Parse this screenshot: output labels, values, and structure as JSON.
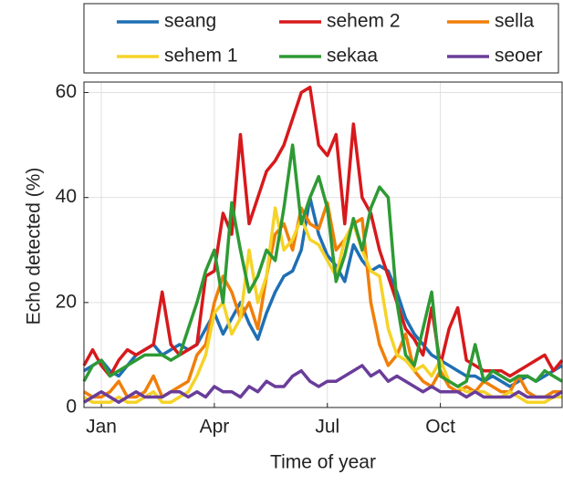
{
  "chart_data": {
    "type": "line",
    "xlabel": "Time of year",
    "ylabel": "Echo detected (%)",
    "categories": [
      null,
      null,
      "Jan",
      null,
      null,
      null,
      null,
      null,
      null,
      null,
      null,
      null,
      null,
      null,
      null,
      "Apr",
      null,
      null,
      null,
      null,
      null,
      null,
      null,
      null,
      null,
      null,
      null,
      null,
      "Jul",
      null,
      null,
      null,
      null,
      null,
      null,
      null,
      null,
      null,
      null,
      null,
      null,
      "Oct",
      null,
      null,
      null,
      null,
      null,
      null,
      null,
      null,
      null,
      null,
      null,
      null,
      null,
      null
    ],
    "series": [
      {
        "name": "seang",
        "color": "#1f6fb4",
        "values": [
          7,
          8,
          9,
          7,
          6,
          8,
          10,
          11,
          12,
          10,
          11,
          12,
          11,
          12,
          15,
          18,
          14,
          17,
          20,
          16,
          13,
          18,
          22,
          25,
          26,
          30,
          40,
          33,
          29,
          27,
          24,
          31,
          28,
          26,
          27,
          26,
          22,
          17,
          14,
          12,
          10,
          9,
          8,
          7,
          6,
          6,
          5,
          6,
          5,
          4,
          5,
          6,
          5,
          6,
          7,
          8
        ]
      },
      {
        "name": "sehem 2",
        "color": "#d7191c",
        "values": [
          8,
          11,
          8,
          6,
          9,
          11,
          10,
          11,
          12,
          22,
          12,
          10,
          11,
          12,
          25,
          26,
          37,
          33,
          52,
          35,
          40,
          45,
          47,
          50,
          55,
          60,
          61,
          50,
          48,
          52,
          35,
          54,
          40,
          37,
          30,
          25,
          20,
          15,
          13,
          10,
          19,
          8,
          15,
          19,
          9,
          8,
          7,
          7,
          7,
          6,
          7,
          8,
          9,
          10,
          7,
          9
        ]
      },
      {
        "name": "sella",
        "color": "#f07f09",
        "values": [
          3,
          2,
          2,
          3,
          5,
          2,
          2,
          3,
          6,
          2,
          3,
          4,
          5,
          10,
          12,
          20,
          25,
          22,
          17,
          20,
          15,
          25,
          33,
          35,
          30,
          38,
          35,
          34,
          39,
          30,
          32,
          35,
          36,
          20,
          12,
          8,
          10,
          14,
          7,
          5,
          4,
          7,
          4,
          3,
          4,
          3,
          5,
          4,
          3,
          3,
          6,
          3,
          2,
          2,
          3,
          3
        ]
      },
      {
        "name": "sehem 1",
        "color": "#f5d328",
        "values": [
          2,
          1,
          1,
          1,
          2,
          1,
          1,
          2,
          3,
          1,
          1,
          2,
          3,
          6,
          10,
          18,
          20,
          14,
          17,
          30,
          20,
          25,
          38,
          30,
          32,
          36,
          32,
          31,
          28,
          25,
          32,
          35,
          30,
          26,
          25,
          15,
          10,
          9,
          7,
          8,
          6,
          9,
          5,
          4,
          3,
          3,
          3,
          2,
          2,
          3,
          2,
          1,
          1,
          1,
          2,
          2
        ]
      },
      {
        "name": "sekaa",
        "color": "#2e9a34",
        "values": [
          5,
          8,
          9,
          6,
          7,
          8,
          9,
          10,
          10,
          10,
          9,
          10,
          15,
          20,
          26,
          30,
          20,
          39,
          30,
          22,
          25,
          30,
          28,
          38,
          50,
          35,
          40,
          44,
          38,
          24,
          29,
          36,
          30,
          38,
          42,
          40,
          20,
          10,
          8,
          15,
          22,
          6,
          5,
          4,
          5,
          12,
          5,
          7,
          6,
          5,
          6,
          6,
          5,
          7,
          6,
          5
        ]
      },
      {
        "name": "seoer",
        "color": "#6a3d9a",
        "values": [
          1,
          2,
          3,
          2,
          1,
          2,
          3,
          2,
          2,
          2,
          3,
          3,
          2,
          3,
          2,
          4,
          3,
          3,
          2,
          4,
          3,
          5,
          4,
          4,
          6,
          7,
          5,
          4,
          5,
          5,
          6,
          7,
          8,
          6,
          7,
          5,
          6,
          5,
          4,
          3,
          4,
          3,
          3,
          3,
          2,
          3,
          2,
          2,
          2,
          2,
          3,
          2,
          2,
          2,
          2,
          3
        ]
      }
    ],
    "ylim": [
      0,
      62
    ],
    "yticks": [
      0,
      20,
      40,
      60
    ],
    "grid": true
  }
}
